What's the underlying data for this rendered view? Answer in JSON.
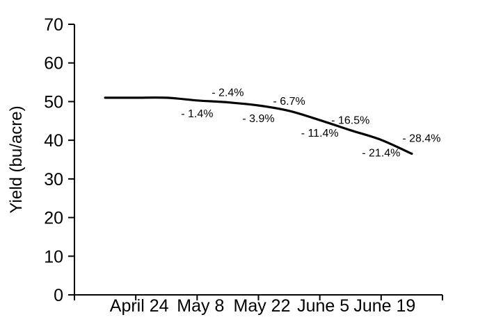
{
  "chart_data": {
    "type": "line",
    "title": "",
    "xlabel": "",
    "ylabel": "Yield (bu/acre)",
    "ylim": [
      0,
      70
    ],
    "yticks": [
      0,
      10,
      20,
      30,
      40,
      50,
      60,
      70
    ],
    "grid": false,
    "legend": false,
    "axis_color": "#000000",
    "line_color": "#000000",
    "text_color": "#000000",
    "background_color": "#ffffff",
    "smoothed": true,
    "x_axis": {
      "range_days": [
        0,
        84
      ],
      "tick_interval_days": 14,
      "tick_labels": [
        "",
        "April 24",
        "May 8",
        "May 22",
        "June 5",
        "June 19",
        ""
      ]
    },
    "baseline_yield": 51,
    "series": [
      {
        "name": "Yield",
        "points": [
          {
            "day": 7,
            "yield": 51.0,
            "pct_label": "",
            "label_pos": ""
          },
          {
            "day": 14,
            "yield": 51.0,
            "pct_label": "",
            "label_pos": ""
          },
          {
            "day": 21,
            "yield": 51.0,
            "pct_label": "",
            "label_pos": ""
          },
          {
            "day": 28,
            "yield": 50.3,
            "pct_label": "- 1.4%",
            "label_pos": "below"
          },
          {
            "day": 35,
            "yield": 49.8,
            "pct_label": "- 2.4%",
            "label_pos": "above"
          },
          {
            "day": 42,
            "yield": 49.0,
            "pct_label": "- 3.9%",
            "label_pos": "below"
          },
          {
            "day": 49,
            "yield": 47.6,
            "pct_label": "- 6.7%",
            "label_pos": "above"
          },
          {
            "day": 56,
            "yield": 45.2,
            "pct_label": "- 11.4%",
            "label_pos": "below"
          },
          {
            "day": 63,
            "yield": 42.6,
            "pct_label": "- 16.5%",
            "label_pos": "above"
          },
          {
            "day": 70,
            "yield": 40.1,
            "pct_label": "- 21.4%",
            "label_pos": "below"
          },
          {
            "day": 77,
            "yield": 36.5,
            "pct_label": "- 28.4%",
            "label_pos": "above-right"
          }
        ]
      }
    ]
  }
}
